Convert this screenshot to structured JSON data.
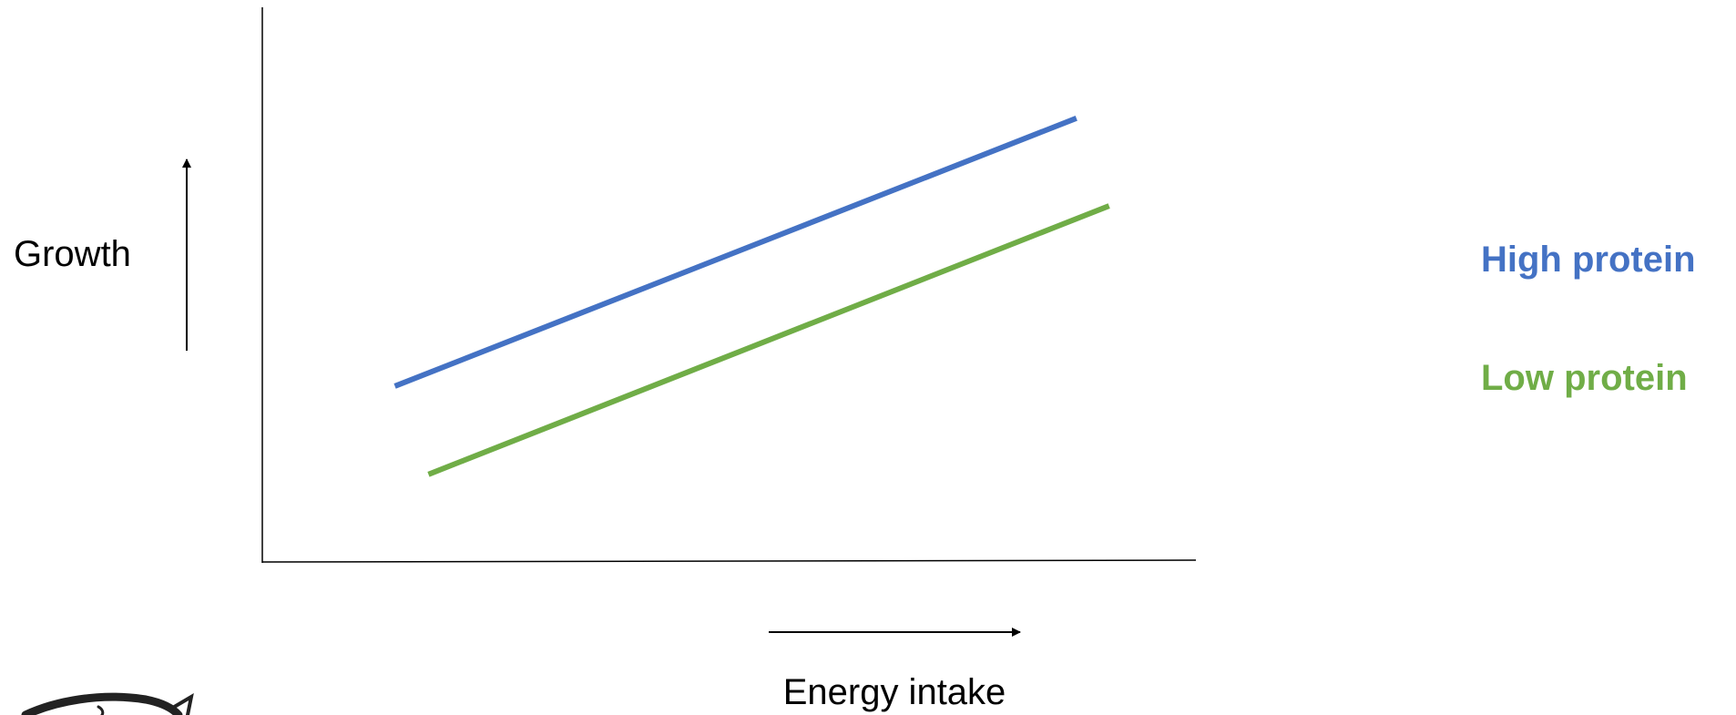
{
  "chart_data": {
    "type": "line",
    "title": "",
    "xlabel": "Energy intake",
    "ylabel": "Growth",
    "xlim": [
      0,
      10
    ],
    "ylim": [
      0,
      10
    ],
    "grid": false,
    "legend_position": "right",
    "axis_ticks": false,
    "series": [
      {
        "name": "High protein",
        "color": "#4472C4",
        "x": [
          1.42,
          8.72
        ],
        "y": [
          3.17,
          8.0
        ]
      },
      {
        "name": "Low protein",
        "color": "#70AD47",
        "x": [
          1.78,
          9.07
        ],
        "y": [
          1.58,
          6.42
        ]
      }
    ]
  },
  "decoration": {
    "fish_logo_icon": "fish-icon"
  }
}
